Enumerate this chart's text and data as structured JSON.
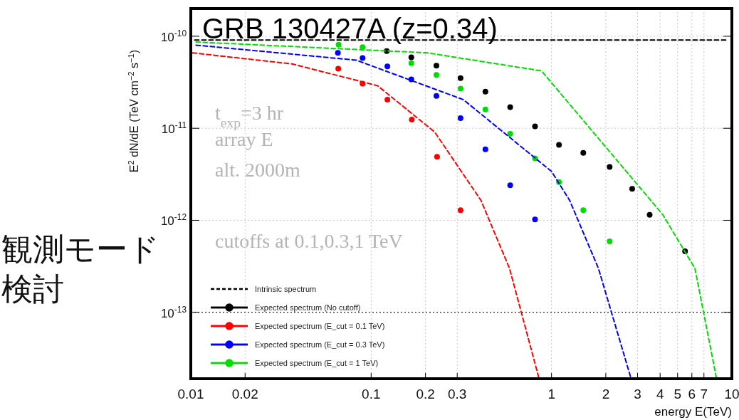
{
  "chart_data": {
    "type": "scatter",
    "title": "GRB 130427A (z=0.34)",
    "xlabel": "energy E(TeV)",
    "ylabel": "E$^{2}$ dN/dE (TeV cm$^{−2}$ s$^{−1}$)",
    "annotations": [
      "観測モード検討",
      "t$_{exp}$=3 hr",
      "array E",
      "alt. 2000m",
      "cutoffs at 0.1,0.3,1 TeV"
    ],
    "log": "xy",
    "grid": true,
    "legend": "bottom left",
    "marker": "circle",
    "xlim": [
      0.01,
      10
    ],
    "ylim": [
      1.9e-14,
      2e-10
    ],
    "xticks": [
      0.01,
      0.02,
      0.1,
      0.2,
      0.3,
      1,
      2,
      3,
      4,
      5,
      6,
      7,
      10
    ],
    "yticks": [
      {
        "value": 1e-10,
        "label": "10$^{-10}$"
      },
      {
        "value": 1e-11,
        "label": "10$^{-11}$"
      },
      {
        "value": 1e-12,
        "label": "10$^{-12}$"
      },
      {
        "value": 1e-13,
        "label": "10$^{-13}$"
      }
    ],
    "ref_lines": [
      {
        "axis": "y",
        "value": 1e-13,
        "color": "#000000",
        "line_style": "dotted"
      }
    ],
    "series": [
      {
        "name": "Intrinsic spectrum",
        "type": "line",
        "marker": "none",
        "line_style": "dashed",
        "color": "#000000",
        "x": [
          0.0105,
          9.5
        ],
        "values": [
          9.1e-11,
          9.1e-11
        ]
      },
      {
        "name": "Expected spectrum (No cutoff)",
        "color": "#000000",
        "x": [
          0.122,
          0.167,
          0.23,
          0.313,
          0.43,
          0.59,
          0.81,
          1.1,
          1.5,
          2.1,
          2.8,
          3.5,
          5.5
        ],
        "values": [
          6.9e-11,
          5.9e-11,
          4.8e-11,
          3.5e-11,
          2.5e-11,
          1.7e-11,
          1.05e-11,
          6.6e-12,
          5.4e-12,
          3.8e-12,
          2.2e-12,
          1.15e-12,
          4.6e-13
        ]
      },
      {
        "name": "Expected spectrum (E_cut = 0.1 TeV)",
        "color": "#ff0000",
        "x": [
          0.0657,
          0.0896,
          0.123,
          0.168,
          0.232,
          0.313
        ],
        "values": [
          4.45e-11,
          3.05e-11,
          2.05e-11,
          1.24e-11,
          4.9e-12,
          1.29e-12
        ]
      },
      {
        "name": "Expected spectrum (E_cut = 0.3 TeV)",
        "color": "#0000ff",
        "x": [
          0.0654,
          0.0896,
          0.123,
          0.167,
          0.23,
          0.313,
          0.43,
          0.59,
          0.81
        ],
        "values": [
          6.6e-11,
          5.8e-11,
          4.7e-11,
          3.4e-11,
          2.25e-11,
          1.29e-11,
          5.9e-12,
          2.4e-12,
          1.02e-12
        ]
      },
      {
        "name": "Expected spectrum (E_cut = 1 TeV)",
        "color": "#00dd00",
        "x": [
          0.066,
          0.0896,
          0.167,
          0.23,
          0.313,
          0.43,
          0.59,
          0.81,
          1.1,
          1.5,
          2.1
        ],
        "values": [
          8.1e-11,
          7.6e-11,
          5.1e-11,
          3.8e-11,
          2.7e-11,
          1.6e-11,
          8.7e-12,
          4.7e-12,
          2.6e-12,
          1.29e-12,
          5.9e-13
        ]
      },
      {
        "type": "line",
        "marker": "none",
        "line_style": "dashed",
        "color": "#ff0000",
        "x": [
          0.0102,
          0.0364,
          0.1086,
          0.225,
          0.406,
          0.585,
          0.85
        ],
        "values": [
          6.6e-11,
          5e-11,
          2.9e-11,
          9.1e-12,
          1.65e-12,
          3e-13,
          1.95e-14
        ]
      },
      {
        "type": "line",
        "marker": "none",
        "line_style": "dashed",
        "color": "#0000ff",
        "x": [
          0.0107,
          0.0826,
          0.324,
          1.0,
          1.26,
          1.82,
          2.75
        ],
        "values": [
          8e-11,
          5.5e-11,
          2.05e-11,
          3.4e-12,
          1.65e-12,
          3e-13,
          1.95e-14
        ]
      },
      {
        "type": "line",
        "marker": "none",
        "line_style": "dashed",
        "color": "#00dd00",
        "x": [
          0.0107,
          0.205,
          0.88,
          4.14,
          6.24,
          8.2
        ],
        "values": [
          8.66e-11,
          6.6e-11,
          4.2e-11,
          1.15e-12,
          3e-13,
          1.95e-14
        ]
      }
    ]
  }
}
